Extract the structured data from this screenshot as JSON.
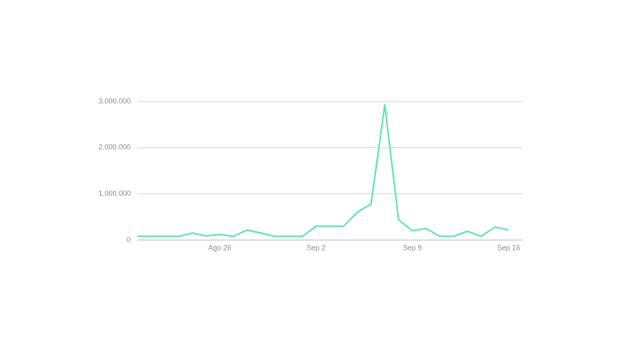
{
  "chart_data": {
    "type": "line",
    "categories": [
      null,
      null,
      null,
      null,
      null,
      null,
      "Ago 26",
      null,
      null,
      null,
      null,
      null,
      null,
      "Sep 2",
      null,
      null,
      null,
      null,
      null,
      null,
      "Sep 9",
      null,
      null,
      null,
      null,
      null,
      null,
      "Sep 16"
    ],
    "values": [
      80000,
      80000,
      80000,
      80000,
      150000,
      90000,
      120000,
      80000,
      220000,
      150000,
      80000,
      80000,
      80000,
      300000,
      300000,
      300000,
      600000,
      780000,
      2930000,
      440000,
      200000,
      250000,
      80000,
      80000,
      190000,
      80000,
      280000,
      220000
    ],
    "color": "#66e0b8",
    "ylim": [
      0,
      3000000
    ],
    "yticks": [
      0,
      {
        "value": 1000000,
        "label": "1.000.000"
      },
      {
        "value": 2000000,
        "label": "2.000.000"
      },
      {
        "value": 3000000,
        "label": "3.000.000"
      }
    ],
    "grid": true
  }
}
